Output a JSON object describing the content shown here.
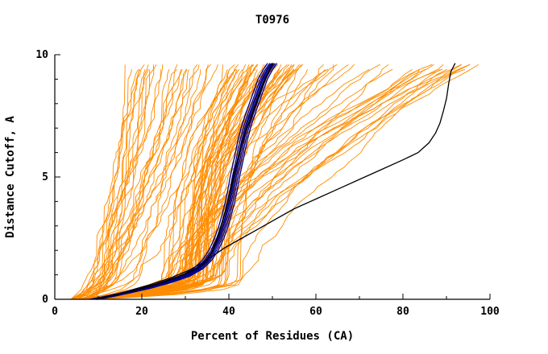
{
  "chart_data": {
    "type": "line",
    "title": "T0976",
    "xlabel": "Percent of Residues (CA)",
    "ylabel": "Distance Cutoff, A",
    "xlim": [
      0,
      100
    ],
    "ylim": [
      0,
      10
    ],
    "x_major_ticks": [
      0,
      20,
      40,
      60,
      80,
      100
    ],
    "x_tick_labels": [
      "0",
      "20",
      "40",
      "60",
      "80",
      "100"
    ],
    "x_minor_step": 10,
    "y_major_ticks": [
      0,
      5,
      10
    ],
    "y_tick_labels": [
      "0",
      "5",
      "10"
    ],
    "y_minor_step": 1,
    "grid": false,
    "legend": "none",
    "colors": {
      "ensemble": "#FF8C00",
      "cluster": "#00008B",
      "reference": "#000000",
      "axis": "#000000",
      "text": "#000000",
      "background": "#FFFFFF"
    },
    "series": [
      {
        "name": "model-ensemble",
        "role": "ensemble",
        "color": "#FF8C00",
        "width": 0.9,
        "generated": true,
        "seed": 20976,
        "count": 104,
        "groups": [
          {
            "name": "left-fan",
            "count": 30,
            "x0": [
              3.5,
              9
            ],
            "xtop": [
              16,
              42
            ],
            "knee_y": [
              0.5,
              2.0
            ],
            "knee_frac": [
              0.15,
              0.45
            ],
            "upper_pow": [
              0.55,
              1.1
            ],
            "noise": 1.2
          },
          {
            "name": "central-bundle",
            "count": 46,
            "x0": [
              4.5,
              11
            ],
            "xtop": [
              40,
              58
            ],
            "knee_y": [
              0.6,
              1.4
            ],
            "knee_frac": [
              0.5,
              0.72
            ],
            "upper_pow": [
              1.5,
              3.0
            ],
            "noise": 0.8
          },
          {
            "name": "right-sweep",
            "count": 28,
            "x0": [
              4.5,
              11
            ],
            "xtop": [
              60,
              99
            ],
            "knee_y": [
              0.5,
              1.3
            ],
            "knee_frac": [
              0.22,
              0.42
            ],
            "upper_pow": [
              1.0,
              2.2
            ],
            "noise": 1.4
          }
        ]
      },
      {
        "name": "cluster-bundle",
        "role": "cluster",
        "color": "#00008B",
        "width": 1.3,
        "offsets": [
          -1.1,
          -0.6,
          -0.25,
          0,
          0.3,
          0.65,
          1.05
        ],
        "points": [
          [
            9,
            0
          ],
          [
            12,
            0.1
          ],
          [
            16,
            0.25
          ],
          [
            21,
            0.45
          ],
          [
            26,
            0.7
          ],
          [
            30,
            0.95
          ],
          [
            33,
            1.25
          ],
          [
            35,
            1.6
          ],
          [
            36.5,
            2
          ],
          [
            37.8,
            2.5
          ],
          [
            38.8,
            3
          ],
          [
            39.6,
            3.5
          ],
          [
            40.3,
            4
          ],
          [
            40.9,
            4.5
          ],
          [
            41.4,
            5
          ],
          [
            42,
            5.5
          ],
          [
            42.6,
            6
          ],
          [
            43.2,
            6.5
          ],
          [
            43.9,
            7
          ],
          [
            44.8,
            7.5
          ],
          [
            45.8,
            8
          ],
          [
            46.8,
            8.5
          ],
          [
            47.8,
            9
          ],
          [
            49,
            9.4
          ],
          [
            50,
            9.65
          ]
        ]
      },
      {
        "name": "reference-right",
        "role": "reference",
        "color": "#000000",
        "width": 1.3,
        "points": [
          [
            10,
            0
          ],
          [
            13,
            0.15
          ],
          [
            17,
            0.35
          ],
          [
            22,
            0.6
          ],
          [
            27,
            0.9
          ],
          [
            31,
            1.2
          ],
          [
            34,
            1.5
          ],
          [
            36.5,
            1.8
          ],
          [
            39,
            2.1
          ],
          [
            42,
            2.4
          ],
          [
            46,
            2.8
          ],
          [
            50,
            3.2
          ],
          [
            55,
            3.7
          ],
          [
            60,
            4.1
          ],
          [
            65,
            4.5
          ],
          [
            70,
            4.9
          ],
          [
            75,
            5.3
          ],
          [
            80,
            5.7
          ],
          [
            83.5,
            6
          ],
          [
            86,
            6.4
          ],
          [
            87.5,
            6.8
          ],
          [
            88.5,
            7.2
          ],
          [
            89.3,
            7.7
          ],
          [
            90,
            8.2
          ],
          [
            90.5,
            8.8
          ],
          [
            91,
            9.3
          ],
          [
            92,
            9.65
          ]
        ]
      },
      {
        "name": "reference-bundle",
        "role": "reference",
        "color": "#000000",
        "width": 1.7,
        "points": [
          [
            9.5,
            0
          ],
          [
            13,
            0.15
          ],
          [
            18,
            0.35
          ],
          [
            23,
            0.6
          ],
          [
            28,
            0.9
          ],
          [
            32,
            1.2
          ],
          [
            34.5,
            1.5
          ],
          [
            36,
            1.9
          ],
          [
            37.2,
            2.4
          ],
          [
            38.2,
            3
          ],
          [
            39.2,
            3.6
          ],
          [
            40,
            4.2
          ],
          [
            40.8,
            4.8
          ],
          [
            41.6,
            5.4
          ],
          [
            42.4,
            6
          ],
          [
            43.4,
            6.6
          ],
          [
            44.6,
            7.2
          ],
          [
            45.6,
            7.7
          ],
          [
            46.4,
            8.1
          ],
          [
            47.4,
            8.6
          ],
          [
            48.4,
            9
          ],
          [
            49.4,
            9.4
          ],
          [
            50.2,
            9.65
          ]
        ]
      }
    ]
  }
}
